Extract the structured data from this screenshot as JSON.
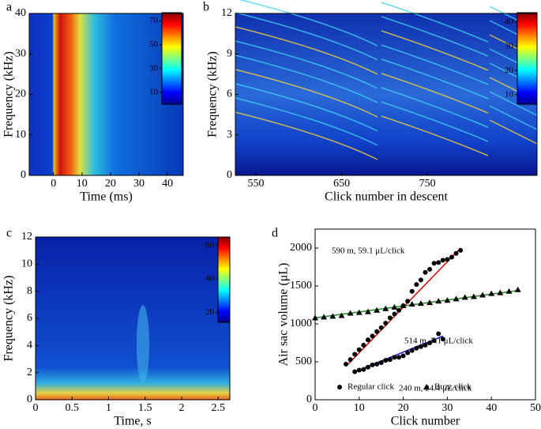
{
  "chart_data": [
    {
      "type": "heatmap",
      "panel": "a",
      "x_label": "Time (ms)",
      "y_label": "Frequency (kHz)",
      "xlim": [
        -8.5,
        45.5
      ],
      "xticks": [
        0,
        10,
        20,
        30,
        40
      ],
      "ylim": [
        0,
        40
      ],
      "yticks": [
        0,
        10,
        20,
        30,
        40
      ],
      "colorbar": {
        "clim": [
          0,
          77
        ],
        "ticks": [
          10,
          30,
          50,
          70
        ]
      }
    },
    {
      "type": "heatmap",
      "panel": "b",
      "x_label": "Click number in descent",
      "y_label": "Frequency (kHz)",
      "xlim": [
        526,
        878
      ],
      "xticks": [
        550,
        650,
        750
      ],
      "ylim": [
        0,
        12
      ],
      "yticks": [
        0,
        3,
        6,
        9,
        12
      ],
      "colorbar": {
        "clim": [
          6,
          44
        ],
        "ticks": [
          10,
          20,
          30,
          40
        ]
      }
    },
    {
      "type": "heatmap",
      "panel": "c",
      "x_label": "Time, s",
      "y_label": "Frequency (kHz)",
      "xlim": [
        0,
        2.66
      ],
      "xticks": [
        0,
        0.5,
        1,
        1.5,
        2,
        2.5
      ],
      "ylim": [
        0,
        12
      ],
      "yticks": [
        0,
        2,
        4,
        6,
        8,
        10,
        12
      ],
      "colorbar": {
        "clim": [
          14,
          65
        ],
        "ticks": [
          20,
          40,
          60
        ]
      }
    },
    {
      "type": "scatter",
      "panel": "d",
      "x_label": "Click number",
      "y_label": "Air sac volume (μL)",
      "xlim": [
        0,
        50
      ],
      "xticks": [
        0,
        10,
        20,
        30,
        40,
        50
      ],
      "ylim": [
        0,
        2250
      ],
      "yticks": [
        0,
        500,
        1000,
        1500,
        2000
      ],
      "series": [
        {
          "name": "Regular click",
          "marker": "circle",
          "color": "#000000",
          "x": [
            7,
            8,
            9,
            10,
            11,
            12,
            13,
            14,
            15,
            16,
            17,
            18,
            19,
            20,
            21,
            22,
            23,
            24,
            25,
            26,
            27,
            28,
            29,
            30,
            31,
            32,
            33,
            9,
            10,
            11,
            12,
            13,
            14,
            15,
            16,
            17,
            18,
            19,
            20,
            21,
            22,
            23,
            24,
            25,
            26,
            27,
            28,
            29
          ],
          "values": [
            470,
            530,
            600,
            660,
            720,
            790,
            840,
            900,
            950,
            1010,
            1080,
            1130,
            1180,
            1240,
            1300,
            1430,
            1520,
            1580,
            1680,
            1720,
            1800,
            1810,
            1840,
            1850,
            1880,
            1930,
            1970,
            370,
            390,
            400,
            430,
            460,
            470,
            490,
            520,
            530,
            560,
            560,
            580,
            620,
            650,
            680,
            700,
            720,
            750,
            780,
            870,
            800
          ]
        },
        {
          "name": "Buzz click",
          "marker": "triangle",
          "color": "#000000",
          "x": [
            0,
            2,
            4,
            6,
            8,
            10,
            12,
            14,
            16,
            18,
            20,
            22,
            24,
            26,
            28,
            30,
            32,
            34,
            36,
            38,
            40,
            42,
            44,
            46
          ],
          "values": [
            1080,
            1090,
            1100,
            1110,
            1140,
            1150,
            1160,
            1180,
            1200,
            1220,
            1240,
            1260,
            1270,
            1280,
            1300,
            1310,
            1330,
            1350,
            1360,
            1380,
            1400,
            1410,
            1430,
            1450
          ]
        }
      ],
      "fits": [
        {
          "label": "590 m, 59.1 μL/click",
          "color": "#e00000",
          "x": [
            7,
            33
          ],
          "values": [
            440,
            2000
          ]
        },
        {
          "label": "514 m, 7.1 μL/click",
          "color": "#1a8a1a",
          "x": [
            0,
            46
          ],
          "values": [
            1080,
            1440
          ]
        },
        {
          "label": "240 m, 24.4 μL/click",
          "color": "#1c1cc8",
          "x": [
            9,
            29
          ],
          "values": [
            370,
            840
          ]
        }
      ]
    }
  ]
}
